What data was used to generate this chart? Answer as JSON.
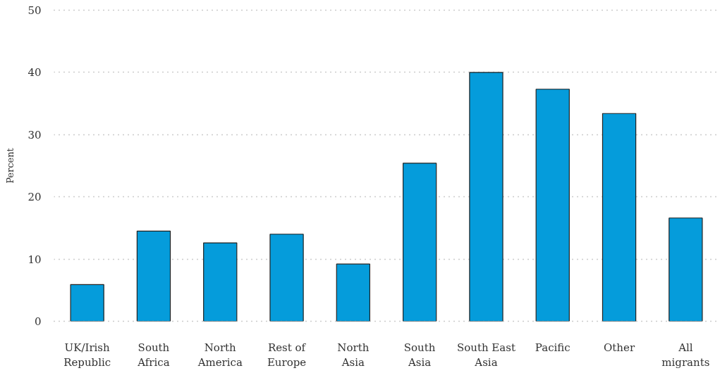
{
  "chart_data": {
    "type": "bar",
    "ylabel": "Percent",
    "categories": [
      "UK/Irish\nRepublic",
      "South\nAfrica",
      "North\nAmerica",
      "Rest of\nEurope",
      "North\nAsia",
      "South\nAsia",
      "South East\nAsia",
      "Pacific",
      "Other",
      "All\nmigrants"
    ],
    "values": [
      5.9,
      14.5,
      12.6,
      14.0,
      9.2,
      25.4,
      40.0,
      37.3,
      33.4,
      16.6
    ],
    "color": "#059cdb",
    "ylim": [
      0,
      50
    ],
    "yticks": [
      0,
      10,
      20,
      30,
      40,
      50
    ],
    "grid": "y"
  }
}
